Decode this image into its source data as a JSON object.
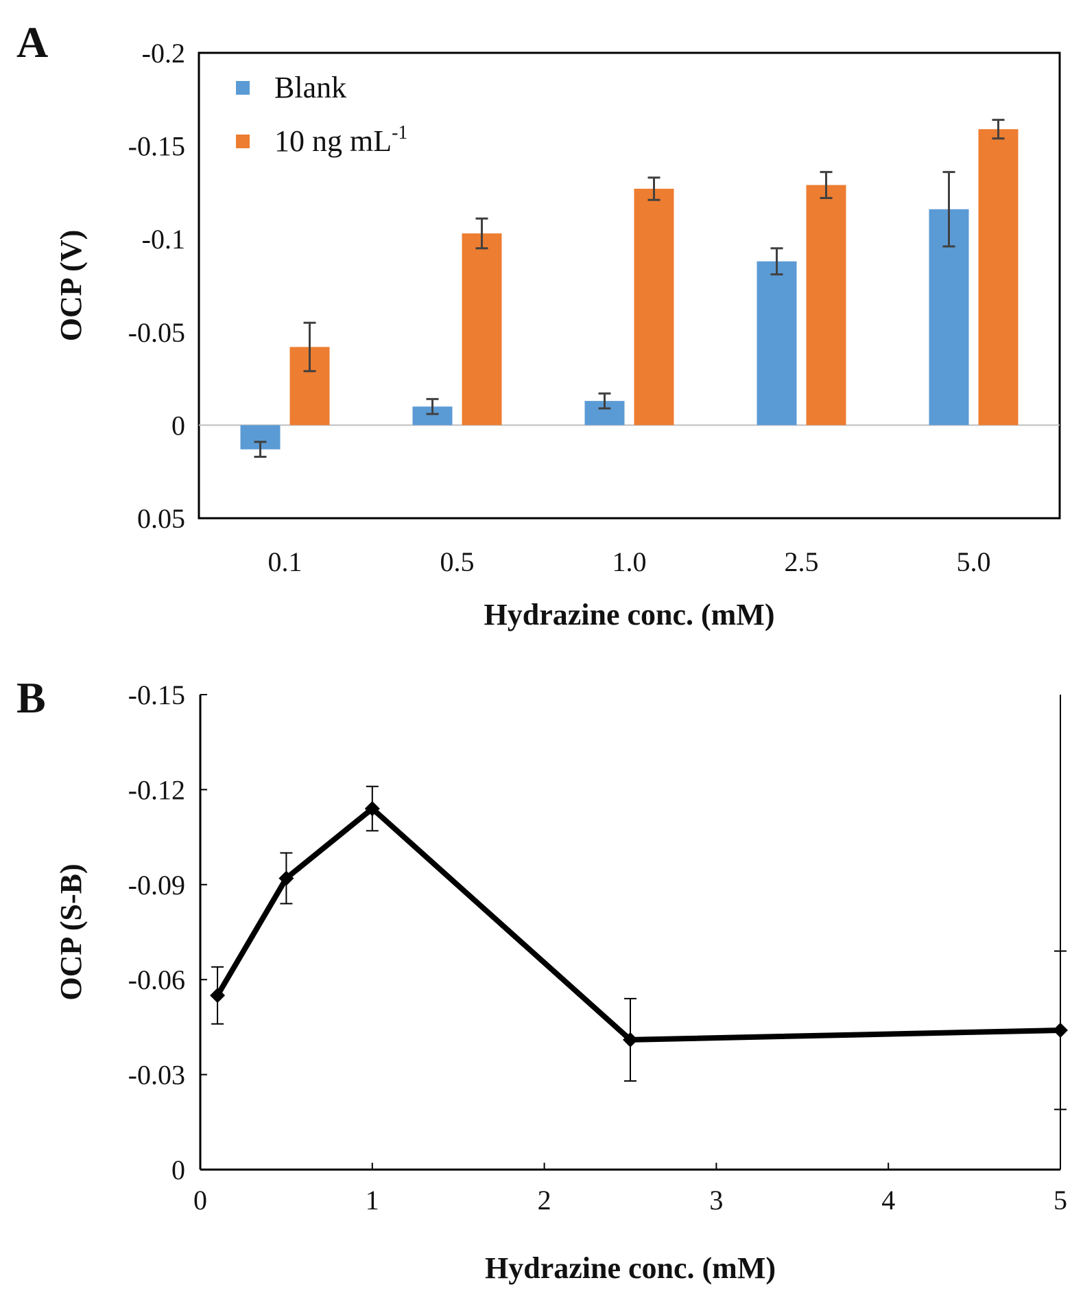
{
  "chart_data": [
    {
      "panel": "A",
      "type": "bar",
      "title": "",
      "xlabel": "Hydrazine conc. (mM)",
      "ylabel": "OCP (V)",
      "ylim": [
        0.05,
        -0.2
      ],
      "yticks": [
        -0.2,
        -0.15,
        -0.1,
        -0.05,
        0,
        0.05
      ],
      "ytick_labels": [
        "-0.2",
        "-0.15",
        "-0.1",
        "-0.05",
        "0",
        "0.05"
      ],
      "categories": [
        "0.1",
        "0.5",
        "1.0",
        "2.5",
        "5.0"
      ],
      "legend_position": "top-left",
      "series": [
        {
          "name": "Blank",
          "legend_label": "Blank",
          "color": "#5B9BD5",
          "values": [
            0.013,
            -0.01,
            -0.013,
            -0.088,
            -0.116
          ],
          "errors": [
            0.004,
            0.004,
            0.004,
            0.007,
            0.02
          ]
        },
        {
          "name": "10 ng mL-1",
          "legend_label": "10 ng mL",
          "legend_sup": "-1",
          "color": "#ED7D31",
          "values": [
            -0.042,
            -0.103,
            -0.127,
            -0.129,
            -0.159
          ],
          "errors": [
            0.013,
            0.008,
            0.006,
            0.007,
            0.005
          ]
        }
      ]
    },
    {
      "panel": "B",
      "type": "line",
      "title": "",
      "xlabel": "Hydrazine conc. (mM)",
      "ylabel": "OCP (S-B)",
      "xlim": [
        0,
        5
      ],
      "xticks": [
        0,
        1,
        2,
        3,
        4,
        5
      ],
      "xtick_labels": [
        "0",
        "1",
        "2",
        "3",
        "4",
        "5"
      ],
      "ylim": [
        0,
        -0.15
      ],
      "yticks": [
        0,
        -0.03,
        -0.06,
        -0.09,
        -0.12,
        -0.15
      ],
      "ytick_labels": [
        "0",
        "-0.03",
        "-0.06",
        "-0.09",
        "-0.12",
        "-0.15"
      ],
      "color": "#000000",
      "x": [
        0.1,
        0.5,
        1.0,
        2.5,
        5.0
      ],
      "y": [
        -0.055,
        -0.092,
        -0.114,
        -0.041,
        -0.044
      ],
      "errors": [
        0.009,
        0.008,
        0.007,
        0.013,
        0.025
      ]
    }
  ]
}
